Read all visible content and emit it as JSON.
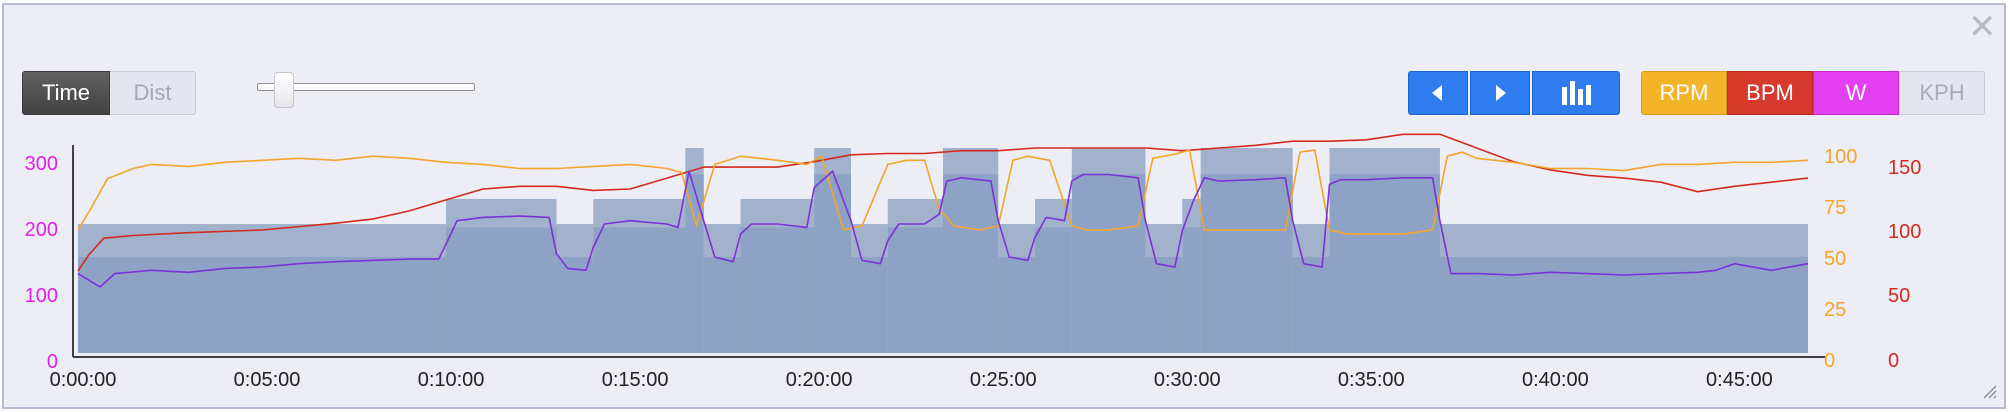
{
  "controls": {
    "time_label": "Time",
    "dist_label": "Dist",
    "close_glyph": "✕",
    "slider_fraction": 0.1,
    "nav": {
      "prev_icon": "left-triangle-icon",
      "next_icon": "right-triangle-icon",
      "bars_icon": "bar-chart-icon"
    },
    "metrics": {
      "rpm": "RPM",
      "bpm": "BPM",
      "w": "W",
      "kph": "KPH"
    }
  },
  "colors": {
    "accent_blue": "#2e7cf0",
    "rpm": "#f4a52a",
    "bpm": "#d42a1e",
    "watts": "#e020e8",
    "power_line": "#7a33d6",
    "target_block_light": "#a2b2cd",
    "target_block_dark": "#8da2c4"
  },
  "chart_data": {
    "type": "line",
    "x_ticks": [
      "0:00:00",
      "0:05:00",
      "0:10:00",
      "0:15:00",
      "0:20:00",
      "0:25:00",
      "0:30:00",
      "0:35:00",
      "0:40:00",
      "0:45:00"
    ],
    "x_range_minutes": [
      0,
      47
    ],
    "axes": {
      "watts": {
        "ticks": [
          "0",
          "100",
          "200",
          "300"
        ],
        "range": [
          0,
          310
        ],
        "color": "#e020e8",
        "side": "left"
      },
      "rpm": {
        "ticks": [
          "0",
          "25",
          "50",
          "75",
          "100"
        ],
        "range": [
          0,
          100
        ],
        "color": "#f4a52a",
        "side": "right"
      },
      "bpm": {
        "ticks": [
          "0",
          "50",
          "100",
          "150"
        ],
        "range": [
          0,
          150
        ],
        "color": "#d42a1e",
        "side": "right"
      }
    },
    "target_blocks": [
      {
        "start": 0,
        "end": 10,
        "lower": 145,
        "upper": 195
      },
      {
        "start": 10,
        "end": 13,
        "lower": 190,
        "upper": 233
      },
      {
        "start": 13,
        "end": 14,
        "lower": 145,
        "upper": 195
      },
      {
        "start": 14,
        "end": 16.5,
        "lower": 190,
        "upper": 233
      },
      {
        "start": 16.5,
        "end": 17,
        "lower": 270,
        "upper": 310
      },
      {
        "start": 17,
        "end": 18,
        "lower": 145,
        "upper": 195
      },
      {
        "start": 18,
        "end": 20,
        "lower": 190,
        "upper": 233
      },
      {
        "start": 20,
        "end": 21,
        "lower": 270,
        "upper": 310
      },
      {
        "start": 21,
        "end": 22,
        "lower": 145,
        "upper": 195
      },
      {
        "start": 22,
        "end": 23.5,
        "lower": 190,
        "upper": 233
      },
      {
        "start": 23.5,
        "end": 25,
        "lower": 270,
        "upper": 310
      },
      {
        "start": 25,
        "end": 26,
        "lower": 145,
        "upper": 195
      },
      {
        "start": 26,
        "end": 27,
        "lower": 190,
        "upper": 233
      },
      {
        "start": 27,
        "end": 29,
        "lower": 270,
        "upper": 310
      },
      {
        "start": 29,
        "end": 30,
        "lower": 145,
        "upper": 195
      },
      {
        "start": 30,
        "end": 30.5,
        "lower": 190,
        "upper": 233
      },
      {
        "start": 30.5,
        "end": 33,
        "lower": 270,
        "upper": 310
      },
      {
        "start": 33,
        "end": 34,
        "lower": 145,
        "upper": 195
      },
      {
        "start": 34,
        "end": 37,
        "lower": 270,
        "upper": 310
      },
      {
        "start": 37,
        "end": 47,
        "lower": 145,
        "upper": 195
      }
    ],
    "series": [
      {
        "name": "W",
        "color": "#7a33d6",
        "x": [
          0,
          0.3,
          0.6,
          1,
          2,
          3,
          4,
          5,
          6,
          7,
          8,
          9,
          9.8,
          10,
          10.3,
          11,
          12,
          12.8,
          13,
          13.3,
          13.8,
          14,
          14.3,
          15,
          16,
          16.3,
          16.6,
          17,
          17.3,
          17.8,
          18,
          18.3,
          19,
          19.8,
          20,
          20.5,
          21,
          21.3,
          21.8,
          22,
          22.3,
          23,
          23.4,
          23.6,
          24,
          24.8,
          25,
          25.3,
          25.8,
          26,
          26.3,
          26.8,
          27,
          27.3,
          28,
          28.8,
          29,
          29.3,
          29.8,
          30,
          30.3,
          30.6,
          31,
          32,
          32.8,
          33,
          33.3,
          33.8,
          34,
          34.3,
          35,
          36,
          36.8,
          37,
          37.3,
          38,
          39,
          40,
          41,
          42,
          43,
          44,
          44.5,
          45,
          46,
          47
        ],
        "y": [
          120,
          110,
          100,
          120,
          125,
          122,
          128,
          130,
          135,
          138,
          140,
          142,
          142,
          165,
          200,
          205,
          207,
          205,
          150,
          128,
          125,
          160,
          195,
          200,
          195,
          190,
          275,
          200,
          145,
          138,
          180,
          195,
          195,
          190,
          250,
          275,
          200,
          140,
          135,
          170,
          195,
          195,
          210,
          260,
          265,
          260,
          200,
          145,
          140,
          175,
          205,
          200,
          260,
          270,
          270,
          265,
          200,
          135,
          130,
          185,
          230,
          265,
          260,
          262,
          265,
          200,
          135,
          130,
          255,
          262,
          262,
          265,
          265,
          200,
          120,
          120,
          118,
          122,
          120,
          118,
          120,
          122,
          125,
          135,
          125,
          135
        ]
      },
      {
        "name": "RPM",
        "color": "#f4a52a",
        "x": [
          0,
          0.4,
          0.8,
          1.5,
          2,
          3,
          4,
          5,
          6,
          7,
          8,
          9,
          10,
          11,
          12,
          13,
          14,
          15,
          16,
          16.4,
          16.8,
          17.3,
          18,
          19,
          19.8,
          20.2,
          20.8,
          21.3,
          22,
          22.5,
          23,
          23.4,
          23.8,
          24.5,
          25,
          25.4,
          25.8,
          26.4,
          27,
          27.4,
          28,
          28.8,
          29.2,
          29.8,
          30.2,
          30.6,
          31,
          32,
          32.8,
          33.2,
          33.6,
          34,
          34.5,
          35,
          36,
          36.8,
          37.2,
          37.6,
          38,
          39,
          40,
          41,
          42,
          43,
          44,
          45,
          46,
          47
        ],
        "y": [
          60,
          72,
          85,
          90,
          92,
          91,
          93,
          94,
          95,
          94,
          96,
          95,
          93,
          92,
          90,
          90,
          91,
          92,
          90,
          88,
          62,
          92,
          96,
          94,
          92,
          96,
          60,
          62,
          92,
          94,
          94,
          70,
          62,
          60,
          62,
          94,
          96,
          94,
          62,
          60,
          60,
          62,
          95,
          97,
          99,
          60,
          60,
          60,
          60,
          98,
          99,
          60,
          58,
          58,
          58,
          60,
          96,
          98,
          95,
          93,
          90,
          90,
          89,
          92,
          92,
          93,
          93,
          94
        ]
      },
      {
        "name": "BPM",
        "color": "#d42a1e",
        "x": [
          0,
          0.3,
          0.7,
          1.5,
          3,
          5,
          7,
          8,
          9,
          10,
          11,
          12,
          13,
          14,
          15,
          16,
          17,
          18,
          19,
          20,
          21,
          22,
          23,
          24,
          25,
          26,
          27,
          28,
          29,
          30,
          31,
          32,
          33,
          34,
          35,
          36,
          37,
          38,
          39,
          40,
          41,
          42,
          43,
          44,
          45,
          46,
          47
        ],
        "y": [
          60,
          72,
          84,
          86,
          88,
          90,
          95,
          98,
          104,
          112,
          120,
          122,
          122,
          119,
          120,
          128,
          136,
          136,
          136,
          140,
          145,
          146,
          146,
          148,
          148,
          150,
          150,
          150,
          150,
          148,
          150,
          152,
          155,
          155,
          156,
          160,
          160,
          150,
          140,
          134,
          130,
          128,
          125,
          118,
          122,
          125,
          128
        ]
      }
    ]
  }
}
